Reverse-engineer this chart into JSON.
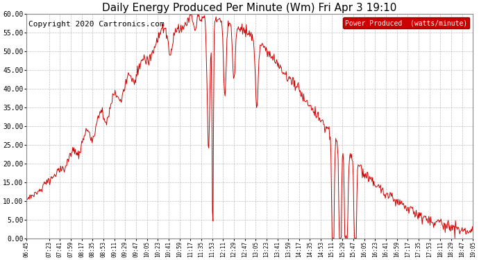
{
  "title": "Daily Energy Produced Per Minute (Wm) Fri Apr 3 19:10",
  "copyright": "Copyright 2020 Cartronics.com",
  "legend_label": "Power Produced  (watts/minute)",
  "legend_bg": "#cc0000",
  "legend_fg": "#ffffff",
  "line_color": "#cc0000",
  "bg_color": "#ffffff",
  "grid_color": "#b0b0b0",
  "ylim": [
    0,
    60
  ],
  "title_fontsize": 11,
  "copyright_fontsize": 8,
  "x_labels": [
    "06:45",
    "07:23",
    "07:41",
    "07:59",
    "08:17",
    "08:35",
    "08:53",
    "09:11",
    "09:29",
    "09:47",
    "10:05",
    "10:23",
    "10:41",
    "10:59",
    "11:17",
    "11:35",
    "11:53",
    "12:11",
    "12:29",
    "12:47",
    "13:05",
    "13:23",
    "13:41",
    "13:59",
    "14:17",
    "14:35",
    "14:53",
    "15:11",
    "15:29",
    "15:47",
    "16:05",
    "16:23",
    "16:41",
    "16:59",
    "17:17",
    "17:35",
    "17:53",
    "18:11",
    "18:29",
    "18:47",
    "19:05"
  ]
}
